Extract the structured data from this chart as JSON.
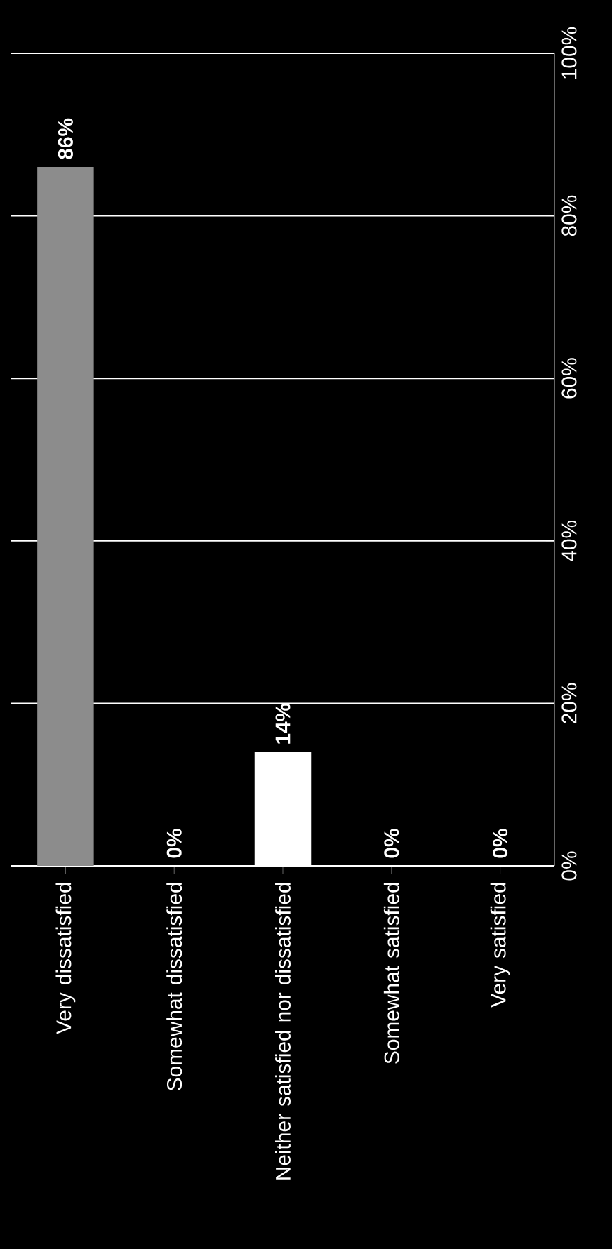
{
  "chart_data": {
    "type": "bar",
    "categories": [
      "Very dissatisfied",
      "Somewhat dissatisfied",
      "Neither satisfied nor dissatisfied",
      "Somewhat satisfied",
      "Very satisfied"
    ],
    "values": [
      86,
      0,
      14,
      0,
      0
    ],
    "colors": [
      "#8c8c8c",
      "#8c8c8c",
      "#ffffff",
      "#8c8c8c",
      "#8c8c8c"
    ],
    "value_labels": [
      "86%",
      "0%",
      "14%",
      "0%",
      "0%"
    ],
    "ylim": [
      0,
      100
    ],
    "yticks": [
      {
        "value": 0,
        "label": "0%"
      },
      {
        "value": 20,
        "label": "20%"
      },
      {
        "value": 40,
        "label": "40%"
      },
      {
        "value": 60,
        "label": "60%"
      },
      {
        "value": 80,
        "label": "80%"
      },
      {
        "value": 100,
        "label": "100%"
      }
    ],
    "grid": "y"
  }
}
